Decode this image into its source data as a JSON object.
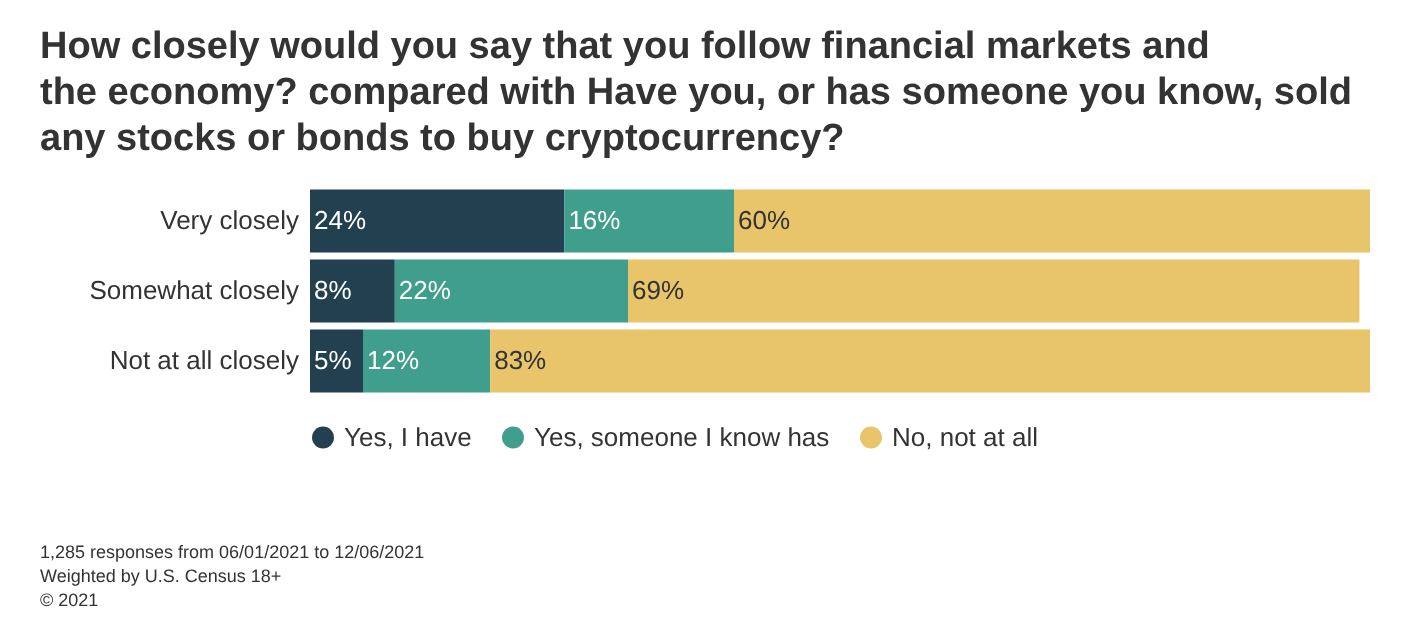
{
  "chart_data": {
    "type": "bar",
    "orientation": "horizontal",
    "stacked": true,
    "tick_labels": "y",
    "legend": "bottom",
    "grid": false,
    "title": "How closely would you say that you follow financial markets and the economy? compared with Have you, or has someone you know, sold any stocks or bonds to buy cryptocurrency?",
    "categories": [
      "Very closely",
      "Somewhat closely",
      "Not at all closely"
    ],
    "series": [
      {
        "name": "Yes, I have",
        "color": "#22404f",
        "values": [
          24,
          8,
          5
        ],
        "value_labels": [
          "24%",
          "8%",
          "5%"
        ]
      },
      {
        "name": "Yes, someone I know has",
        "color": "#3f9e8c",
        "values": [
          16,
          22,
          12
        ],
        "value_labels": [
          "16%",
          "22%",
          "12%"
        ]
      },
      {
        "name": "No, not at all",
        "color": "#e8c46b",
        "values": [
          60,
          69,
          83
        ],
        "value_labels": [
          "60%",
          "69%",
          "83%"
        ]
      }
    ],
    "annotations": [
      "1,285 responses from 06/01/2021 to 12/06/2021",
      "Weighted by U.S. Census 18+",
      "© 2021"
    ]
  }
}
